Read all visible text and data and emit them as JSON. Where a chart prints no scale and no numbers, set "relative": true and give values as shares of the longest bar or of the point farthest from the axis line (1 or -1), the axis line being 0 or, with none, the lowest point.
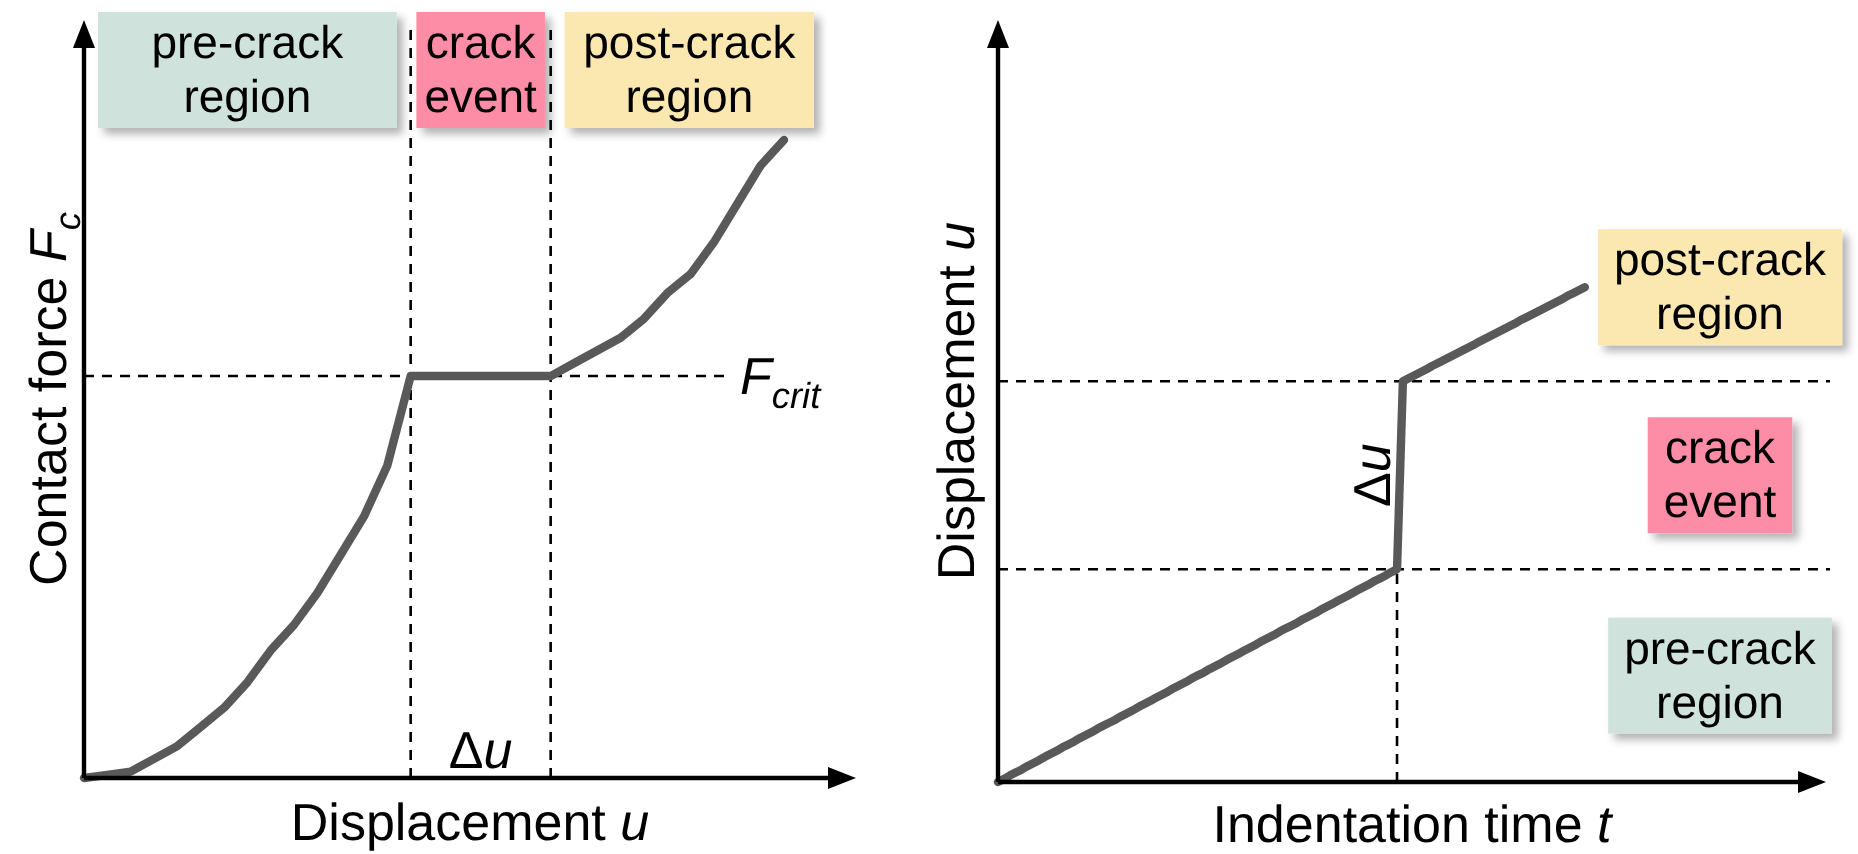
{
  "chart_data": [
    {
      "type": "line",
      "relative": true,
      "xlabel": "Displacement u",
      "ylabel": "Contact force F$_{c}$",
      "categories": [
        null,
        null,
        null,
        null,
        null,
        null,
        null,
        null,
        null,
        null,
        null,
        null,
        null,
        null,
        null,
        null,
        null,
        null,
        null,
        null,
        null,
        null,
        null,
        null,
        null,
        null,
        null,
        null,
        null,
        null,
        null
      ],
      "series": [
        {
          "color": "#595959",
          "values": [
            0,
            0.005,
            0.01,
            0.03,
            0.05,
            0.08,
            0.11,
            0.15,
            0.2,
            0.24,
            0.29,
            0.35,
            0.41,
            0.49,
            0.63,
            0.63,
            0.63,
            0.63,
            0.63,
            0.63,
            0.63,
            0.65,
            0.67,
            0.69,
            0.72,
            0.76,
            0.79,
            0.84,
            0.9,
            0.96,
            1
          ]
        }
      ],
      "ref_lines": [
        {
          "axis": "y",
          "value": 0.63,
          "label": "F$_{crit}$",
          "color": "#000000",
          "line_style": "dashed"
        }
      ],
      "annotations": [
        "pre-crack region",
        "crack event",
        "post-crack region",
        "Δu"
      ]
    },
    {
      "type": "line",
      "relative": true,
      "xlabel": "Indentation time t",
      "ylabel": "Displacement u",
      "categories": [
        null,
        null,
        null,
        null,
        null,
        null,
        null,
        null,
        null,
        null,
        null,
        null,
        null,
        null,
        null,
        null,
        null,
        null,
        null,
        null,
        null,
        null,
        null,
        null,
        null,
        null,
        null,
        null,
        null,
        null,
        null,
        null,
        null,
        null,
        null,
        null,
        null,
        null,
        null,
        null,
        null,
        null,
        null,
        null,
        null,
        null,
        null,
        null,
        null,
        null,
        null,
        null,
        null,
        null,
        null,
        null,
        null,
        null,
        null,
        null,
        null,
        null,
        null,
        null,
        null,
        null,
        null,
        null,
        null,
        null,
        null,
        null,
        null,
        null,
        null,
        null,
        null,
        null,
        null,
        null,
        null,
        null,
        null,
        null,
        null,
        null,
        null,
        null,
        null,
        null,
        null,
        null,
        null,
        null,
        null,
        null,
        null,
        null,
        null,
        null,
        null
      ],
      "series": [
        {
          "color": "#595959",
          "values": [
            0,
            0.006,
            0.013,
            0.019,
            0.025,
            0.032,
            0.038,
            0.044,
            0.051,
            0.057,
            0.063,
            0.07,
            0.076,
            0.082,
            0.089,
            0.095,
            0.101,
            0.108,
            0.114,
            0.12,
            0.126,
            0.133,
            0.139,
            0.145,
            0.152,
            0.158,
            0.164,
            0.171,
            0.177,
            0.183,
            0.19,
            0.196,
            0.202,
            0.209,
            0.215,
            0.221,
            0.228,
            0.234,
            0.24,
            0.247,
            0.253,
            0.259,
            0.266,
            0.272,
            0.278,
            0.285,
            0.291,
            0.297,
            0.304,
            0.31,
            0.316,
            0.322,
            0.329,
            0.335,
            0.341,
            0.348,
            0.354,
            0.36,
            0.367,
            0.373,
            0.379,
            0.386,
            0.392,
            0.398,
            0.405,
            0.411,
            0.417,
            0.424,
            0.43,
            0.81,
            0.816,
            0.822,
            0.828,
            0.834,
            0.841,
            0.847,
            0.853,
            0.859,
            0.865,
            0.871,
            0.877,
            0.883,
            0.89,
            0.896,
            0.902,
            0.908,
            0.914,
            0.92,
            0.926,
            0.933,
            0.939,
            0.945,
            0.951,
            0.957,
            0.963,
            0.969,
            0.975,
            0.982,
            0.988,
            0.994,
            1
          ]
        }
      ],
      "ref_lines": [
        {
          "axis": "y",
          "value": 0.43,
          "color": "#000000",
          "line_style": "dashed"
        },
        {
          "axis": "y",
          "value": 0.81,
          "color": "#000000",
          "line_style": "dashed"
        }
      ],
      "annotations": [
        "pre-crack region",
        "crack event",
        "post-crack region",
        "Δu"
      ]
    }
  ]
}
